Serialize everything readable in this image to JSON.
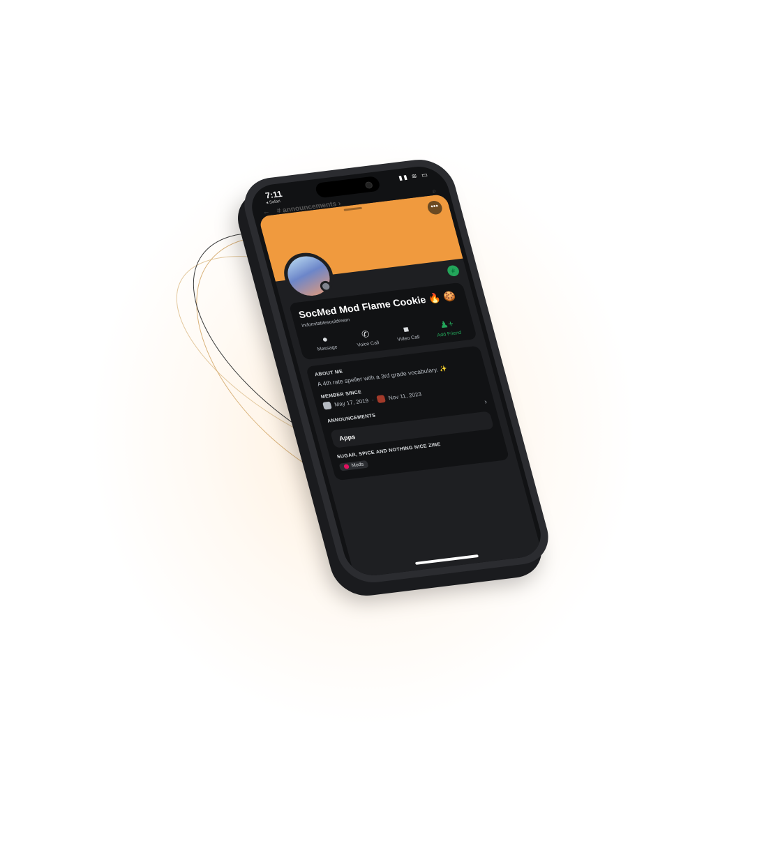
{
  "colors": {
    "banner": "#f09a3e",
    "accent_green": "#23a55a",
    "background": "#ffffff",
    "glow": "#ffe2be"
  },
  "statusbar": {
    "time": "7:11",
    "back_app": "◂ Safari",
    "icons": "▮▮ ≋ ▭"
  },
  "channel": {
    "name": "announcements ›"
  },
  "profile": {
    "display_name": "SocMed Mod Flame Cookie 🔥 🍪",
    "username": "indomitablesouldream",
    "actions": [
      {
        "label": "Message",
        "icon": "message-icon"
      },
      {
        "label": "Voice Call",
        "icon": "phone-icon"
      },
      {
        "label": "Video Call",
        "icon": "video-icon"
      },
      {
        "label": "Add Friend",
        "icon": "add-friend-icon"
      }
    ],
    "about_title": "ABOUT ME",
    "about_text": "A 4th rate speller with a 3rd grade vocabulary. ✨",
    "member_since_title": "MEMBER SINCE",
    "discord_since": "May 17, 2019",
    "server_since": "Nov 11, 2023",
    "announcements_label": "ANNOUNCEMENTS",
    "apps_label": "Apps",
    "server_title": "SUGAR, SPICE AND NOTHING NICE ZINE",
    "role": "Mods"
  }
}
